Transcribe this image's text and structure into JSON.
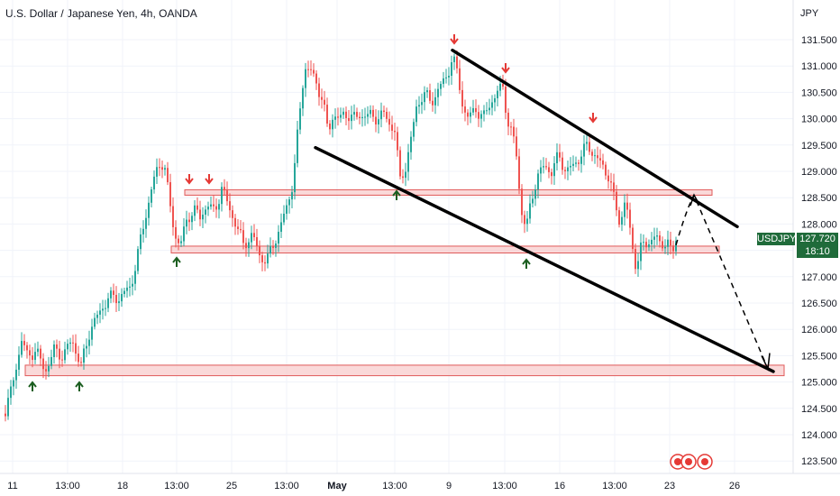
{
  "header": {
    "title": "U.S. Dollar / Japanese Yen, 4h, OANDA"
  },
  "chart_data": {
    "type": "candlestick",
    "symbol": "USDJPY",
    "currency_label": "JPY",
    "last_price": "127.720",
    "countdown": "18:10",
    "ylim": [
      123.4,
      131.9
    ],
    "y_ticks": [
      "131.500",
      "131.000",
      "130.500",
      "130.000",
      "129.500",
      "129.000",
      "128.500",
      "128.000",
      "127.500",
      "127.000",
      "126.500",
      "126.000",
      "125.500",
      "125.000",
      "124.500",
      "124.000",
      "123.500"
    ],
    "x_ticks": [
      "11",
      "13:00",
      "18",
      "13:00",
      "25",
      "13:00",
      "May",
      "13:00",
      "9",
      "13:00",
      "16",
      "13:00",
      "23",
      "26"
    ],
    "support_zones": [
      {
        "from": 128.55,
        "to": 128.65
      },
      {
        "from": 127.45,
        "to": 127.58
      },
      {
        "from": 125.12,
        "to": 125.32
      }
    ],
    "channel_upper": [
      {
        "x": "9",
        "y": 131.3
      },
      {
        "x": "26+",
        "y": 128.15
      }
    ],
    "channel_lower": [
      {
        "x": "May-",
        "y": 129.4
      },
      {
        "x": "26+",
        "y": 125.2
      }
    ],
    "projection": [
      127.55,
      128.55,
      125.25
    ],
    "colors": {
      "up": "#26a69a",
      "down": "#ef5350",
      "zone_fill": "#f8c9c9",
      "zone_stroke": "#e05a5a",
      "line": "#000000",
      "tag": "#1f6b3a"
    }
  }
}
